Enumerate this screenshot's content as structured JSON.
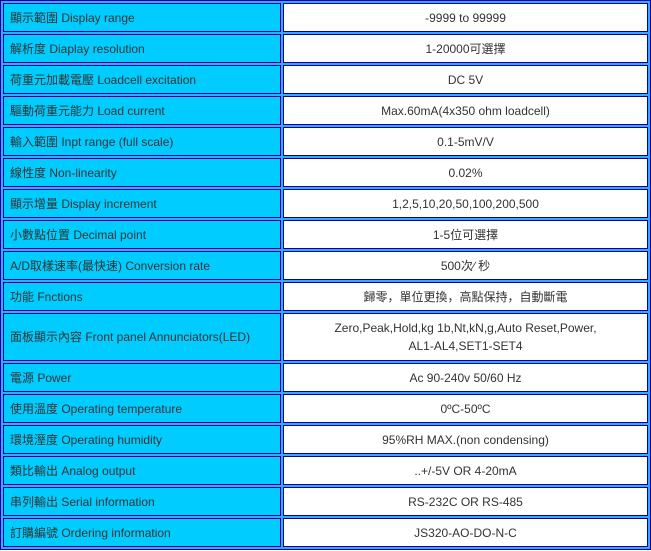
{
  "rows": [
    {
      "label": "顯示範圍 Display range",
      "value": "-9999 to 99999"
    },
    {
      "label": "解析度 Diaplay resolution",
      "value": "1-20000可選擇"
    },
    {
      "label": "荷重元加載電壓 Loadcell excitation",
      "value": "DC 5V"
    },
    {
      "label": "驅動荷重元能力 Load current",
      "value": "Max.60mA(4x350 ohm loadcell)"
    },
    {
      "label": "輸入範圍 Inpt range (full scale)",
      "value": "0.1-5mV/V"
    },
    {
      "label": "線性度 Non-linearity",
      "value": "0.02%"
    },
    {
      "label": "顯示增量 Display increment",
      "value": "1,2,5,10,20,50,100,200,500"
    },
    {
      "label": "小數點位置 Decimal point",
      "value": "1-5位可選擇"
    },
    {
      "label": "A/D取樣速率(最快速) Conversion rate",
      "value": "500次∕ 秒"
    },
    {
      "label": "功能 Fnctions",
      "value": "歸零，單位更換，高點保持，自動斷電"
    },
    {
      "label": "面板顯示內容 Front panel Annunciators(LED)",
      "value": "Zero,Peak,Hold,kg 1b,Nt,kN,g,Auto Reset,Power,",
      "value2": "AL1-AL4,SET1-SET4"
    },
    {
      "label": "電源 Power",
      "value": "Ac 90-240v 50/60 Hz"
    },
    {
      "label": "使用溫度 Operating temperature",
      "value": "0ºC-50ºC"
    },
    {
      "label": "環境溼度 Operating humidity",
      "value": "95%RH MAX.(non condensing)"
    },
    {
      "label": "類比輸出 Analog output",
      "value": "..+/-5V OR 4-20mA"
    },
    {
      "label": "串列輸出 Serial information",
      "value": "RS-232C OR RS-485"
    },
    {
      "label": "訂購編號 Ordering information",
      "value": "JS320-AO-DO-N-C"
    }
  ]
}
